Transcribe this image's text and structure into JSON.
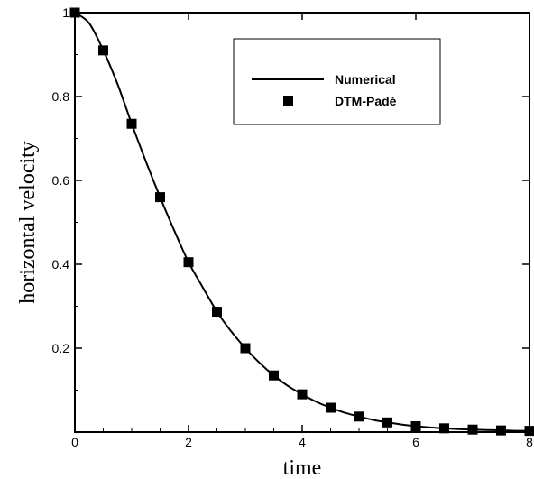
{
  "chart_data": {
    "type": "line",
    "xlabel": "time",
    "ylabel": "horizontal velocity",
    "xlim": [
      0,
      8
    ],
    "ylim": [
      0,
      1
    ],
    "x_ticks": [
      "0",
      "2",
      "4",
      "6",
      "8"
    ],
    "y_ticks": [
      "0.2",
      "0.4",
      "0.6",
      "0.8",
      "1"
    ],
    "grid": false,
    "legend_position": "top-right",
    "series": [
      {
        "name": "Numerical",
        "style": "line",
        "color": "#000000",
        "x": [
          0,
          0.25,
          0.5,
          0.75,
          1,
          1.25,
          1.5,
          1.75,
          2,
          2.25,
          2.5,
          2.75,
          3,
          3.25,
          3.5,
          3.75,
          4,
          4.25,
          4.5,
          4.75,
          5,
          5.25,
          5.5,
          5.75,
          6,
          6.25,
          6.5,
          6.75,
          7,
          7.25,
          7.5,
          7.75,
          8
        ],
        "y": [
          1.0,
          0.975,
          0.91,
          0.83,
          0.735,
          0.645,
          0.56,
          0.48,
          0.405,
          0.345,
          0.287,
          0.24,
          0.2,
          0.165,
          0.135,
          0.11,
          0.09,
          0.072,
          0.058,
          0.046,
          0.037,
          0.029,
          0.023,
          0.018,
          0.014,
          0.011,
          0.009,
          0.007,
          0.006,
          0.005,
          0.004,
          0.003,
          0.003
        ]
      },
      {
        "name": "DTM-Padé",
        "style": "marker-square",
        "color": "#000000",
        "x": [
          0,
          0.5,
          1,
          1.5,
          2,
          2.5,
          3,
          3.5,
          4,
          4.5,
          5,
          5.5,
          6,
          6.5,
          7,
          7.5,
          8
        ],
        "y": [
          1.0,
          0.91,
          0.735,
          0.56,
          0.405,
          0.287,
          0.2,
          0.135,
          0.09,
          0.058,
          0.037,
          0.023,
          0.014,
          0.009,
          0.006,
          0.004,
          0.003
        ]
      }
    ]
  }
}
